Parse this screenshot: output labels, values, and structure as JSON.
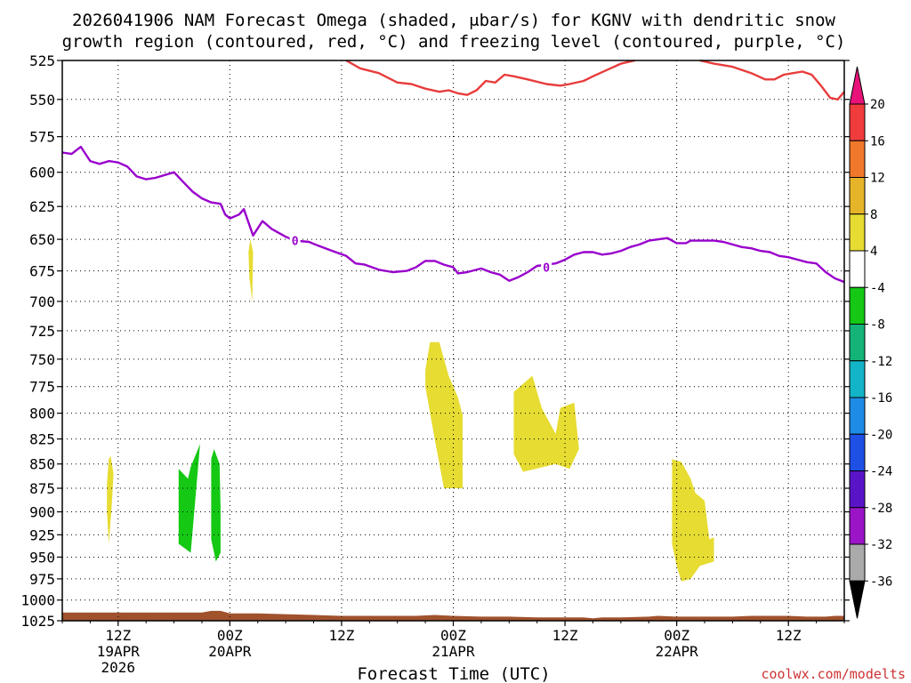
{
  "chart_data": {
    "type": "contour-time-height",
    "title_line1": "2026041906 NAM Forecast Omega (shaded, μbar/s) for KGNV with dendritic snow",
    "title_line2": "growth region (contoured, red, °C) and freezing level (contoured, purple, °C)",
    "xlabel": "Forecast Time (UTC)",
    "credit": "coolwx.com/modelts",
    "x_range_hours": [
      0,
      84
    ],
    "y_axis": {
      "scale": "pressure",
      "range": [
        1025,
        525
      ],
      "ticks": [
        525,
        550,
        575,
        600,
        625,
        650,
        675,
        700,
        725,
        750,
        775,
        800,
        825,
        850,
        875,
        900,
        925,
        950,
        975,
        1000,
        1025
      ]
    },
    "x_ticks": [
      {
        "hour": 6,
        "line1": "12Z",
        "line2": "19APR",
        "line3": "2026"
      },
      {
        "hour": 18,
        "line1": "00Z",
        "line2": "20APR",
        "line3": ""
      },
      {
        "hour": 30,
        "line1": "12Z",
        "line2": "",
        "line3": ""
      },
      {
        "hour": 42,
        "line1": "00Z",
        "line2": "21APR",
        "line3": ""
      },
      {
        "hour": 54,
        "line1": "12Z",
        "line2": "",
        "line3": ""
      },
      {
        "hour": 66,
        "line1": "00Z",
        "line2": "22APR",
        "line3": ""
      },
      {
        "hour": 78,
        "line1": "12Z",
        "line2": "",
        "line3": ""
      }
    ],
    "colorbar": {
      "labels": [
        "20",
        "16",
        "12",
        "8",
        "4",
        "-4",
        "-8",
        "-12",
        "-16",
        "-20",
        "-24",
        "-28",
        "-32",
        "-36"
      ],
      "colors": [
        "#e8127a",
        "#f03c3c",
        "#f0782a",
        "#e6b428",
        "#e6dc32",
        "#ffffff",
        "#14c814",
        "#14b478",
        "#14b4c8",
        "#1e8ce6",
        "#1e50e6",
        "#5a14c8",
        "#9b14c8",
        "#aaaaaa",
        "#000000"
      ]
    },
    "series": [
      {
        "name": "",
        "color": "#e83c3c",
        "points": [
          [
            30.5,
            525
          ],
          [
            32,
            530
          ],
          [
            34,
            533
          ],
          [
            36,
            539
          ],
          [
            37.5,
            540
          ],
          [
            39,
            543
          ],
          [
            40.5,
            545
          ],
          [
            41.5,
            544
          ],
          [
            42.5,
            546
          ],
          [
            43.5,
            547
          ],
          [
            44.5,
            544
          ],
          [
            45.5,
            538
          ],
          [
            46.5,
            539
          ],
          [
            47.5,
            534
          ],
          [
            48.5,
            535
          ],
          [
            50,
            537
          ],
          [
            52,
            540
          ],
          [
            53.5,
            541
          ],
          [
            54.5,
            540
          ],
          [
            56,
            538
          ],
          [
            57,
            535
          ],
          [
            58.5,
            531
          ],
          [
            60,
            527
          ],
          [
            61.5,
            525
          ]
        ]
      },
      {
        "name": "",
        "color": "#e83c3c",
        "points": [
          [
            68.5,
            525
          ],
          [
            70,
            527
          ],
          [
            72,
            529
          ],
          [
            74,
            533
          ],
          [
            75.5,
            537
          ],
          [
            76.5,
            537
          ],
          [
            77.5,
            534
          ],
          [
            78.5,
            533
          ],
          [
            79.5,
            532
          ],
          [
            80.5,
            534
          ],
          [
            81.5,
            541
          ],
          [
            82.5,
            549
          ],
          [
            83.3,
            550
          ],
          [
            84,
            545
          ]
        ]
      },
      {
        "name": "",
        "color": "#9900cc",
        "points": [
          [
            0,
            586
          ],
          [
            1,
            587
          ],
          [
            2,
            582
          ],
          [
            3,
            592
          ],
          [
            4,
            594
          ],
          [
            5,
            592
          ],
          [
            6,
            593
          ],
          [
            7,
            596
          ],
          [
            8,
            603
          ],
          [
            9,
            605
          ],
          [
            10,
            604
          ],
          [
            11,
            602
          ],
          [
            12,
            600
          ],
          [
            13,
            607
          ],
          [
            14,
            614
          ],
          [
            15,
            619
          ],
          [
            16,
            622
          ],
          [
            17,
            623
          ],
          [
            17.5,
            631
          ],
          [
            18,
            634
          ],
          [
            19,
            631
          ],
          [
            19.5,
            627
          ],
          [
            20,
            637
          ],
          [
            20.5,
            647
          ],
          [
            21.5,
            636
          ],
          [
            22.5,
            642
          ],
          [
            24,
            648
          ],
          [
            25,
            651
          ],
          [
            26.5,
            652
          ],
          [
            27.5,
            655
          ],
          [
            29,
            659
          ],
          [
            30.5,
            663
          ],
          [
            31.5,
            669
          ],
          [
            32.5,
            670
          ],
          [
            34,
            674
          ],
          [
            35.5,
            676
          ],
          [
            37,
            675
          ],
          [
            38,
            672
          ],
          [
            39,
            667
          ],
          [
            40,
            667
          ],
          [
            41,
            670
          ],
          [
            42,
            672
          ],
          [
            42.5,
            677
          ],
          [
            43.5,
            676
          ],
          [
            45,
            673
          ],
          [
            46,
            676
          ],
          [
            47,
            678
          ],
          [
            48,
            683
          ],
          [
            49,
            680
          ],
          [
            50,
            676
          ],
          [
            51,
            671
          ],
          [
            52,
            670
          ],
          [
            53,
            669
          ],
          [
            54,
            666
          ],
          [
            55,
            662
          ],
          [
            56,
            660
          ],
          [
            57,
            660
          ],
          [
            58,
            662
          ],
          [
            59,
            661
          ],
          [
            60,
            659
          ],
          [
            61,
            656
          ],
          [
            62,
            654
          ],
          [
            63,
            651
          ],
          [
            65,
            649
          ],
          [
            66,
            653
          ],
          [
            67,
            653
          ],
          [
            67.5,
            651
          ],
          [
            69,
            651
          ],
          [
            70,
            651
          ],
          [
            71,
            652
          ],
          [
            72,
            654
          ],
          [
            73,
            656
          ],
          [
            74,
            657
          ],
          [
            75,
            659
          ],
          [
            76,
            660
          ],
          [
            77,
            663
          ],
          [
            78,
            664
          ],
          [
            79,
            666
          ],
          [
            80,
            668
          ],
          [
            81,
            669
          ],
          [
            82,
            676
          ],
          [
            83,
            681
          ],
          [
            84,
            684
          ]
        ]
      }
    ],
    "contour_labels": [
      {
        "hour": 25,
        "pressure": 651,
        "text": "0"
      },
      {
        "hour": 52,
        "pressure": 672,
        "text": "0"
      }
    ],
    "shaded_regions": [
      {
        "color": "#e6dc32",
        "points": [
          [
            5,
            845
          ],
          [
            5.2,
            842
          ],
          [
            5.5,
            860
          ],
          [
            5.3,
            895
          ],
          [
            5,
            935
          ],
          [
            4.8,
            900
          ],
          [
            4.8,
            870
          ]
        ]
      },
      {
        "color": "#14c814",
        "points": [
          [
            13.5,
            865
          ],
          [
            13.8,
            853
          ],
          [
            14.8,
            830
          ],
          [
            13.8,
            945
          ],
          [
            12.5,
            935
          ],
          [
            12.5,
            855
          ]
        ]
      },
      {
        "color": "#14c814",
        "points": [
          [
            16,
            845
          ],
          [
            16.3,
            835
          ],
          [
            16.9,
            850
          ],
          [
            17,
            895
          ],
          [
            17,
            945
          ],
          [
            16.5,
            955
          ],
          [
            16,
            930
          ]
        ]
      },
      {
        "color": "#e6dc32",
        "points": [
          [
            20.2,
            650
          ],
          [
            20.5,
            660
          ],
          [
            20.4,
            700
          ],
          [
            20.1,
            680
          ],
          [
            20,
            660
          ]
        ]
      },
      {
        "color": "#e6dc32",
        "points": [
          [
            39.5,
            735
          ],
          [
            40.5,
            735
          ],
          [
            41.5,
            765
          ],
          [
            42.5,
            785
          ],
          [
            43,
            802
          ],
          [
            43,
            875
          ],
          [
            41,
            875
          ],
          [
            40,
            825
          ],
          [
            39,
            775
          ],
          [
            39,
            760
          ]
        ]
      },
      {
        "color": "#e6dc32",
        "points": [
          [
            48.5,
            780
          ],
          [
            50.5,
            765
          ],
          [
            51.5,
            795
          ],
          [
            53,
            820
          ],
          [
            53.5,
            795
          ],
          [
            55,
            790
          ],
          [
            55.5,
            835
          ],
          [
            54.5,
            855
          ],
          [
            53,
            850
          ],
          [
            49.5,
            858
          ],
          [
            48.5,
            840
          ]
        ]
      },
      {
        "color": "#e6dc32",
        "points": [
          [
            65.5,
            845
          ],
          [
            66.5,
            848
          ],
          [
            67.5,
            865
          ],
          [
            68,
            880
          ],
          [
            69,
            888
          ],
          [
            69.5,
            930
          ],
          [
            70,
            928
          ],
          [
            70,
            955
          ],
          [
            68.5,
            960
          ],
          [
            67.5,
            975
          ],
          [
            66.5,
            978
          ],
          [
            66,
            960
          ],
          [
            65.5,
            935
          ]
        ]
      }
    ],
    "terrain": {
      "color": "#a0522d",
      "surface_points": [
        [
          0,
          1015
        ],
        [
          6,
          1015
        ],
        [
          12,
          1015
        ],
        [
          15,
          1015
        ],
        [
          16,
          1013
        ],
        [
          17,
          1013
        ],
        [
          18,
          1016
        ],
        [
          21,
          1016
        ],
        [
          24,
          1017
        ],
        [
          27,
          1018
        ],
        [
          30,
          1019
        ],
        [
          33,
          1019
        ],
        [
          36,
          1019
        ],
        [
          38,
          1019
        ],
        [
          40,
          1018
        ],
        [
          42,
          1019
        ],
        [
          45,
          1020
        ],
        [
          48,
          1020
        ],
        [
          51,
          1021
        ],
        [
          54,
          1021
        ],
        [
          56,
          1021
        ],
        [
          57,
          1022
        ],
        [
          58,
          1021
        ],
        [
          60,
          1021
        ],
        [
          63,
          1020
        ],
        [
          64,
          1019
        ],
        [
          66,
          1020
        ],
        [
          69,
          1020
        ],
        [
          72,
          1020
        ],
        [
          74,
          1019
        ],
        [
          76,
          1019
        ],
        [
          78,
          1019
        ],
        [
          80,
          1020
        ],
        [
          82,
          1020
        ],
        [
          83,
          1019
        ],
        [
          84,
          1019
        ]
      ]
    },
    "grid": true
  }
}
